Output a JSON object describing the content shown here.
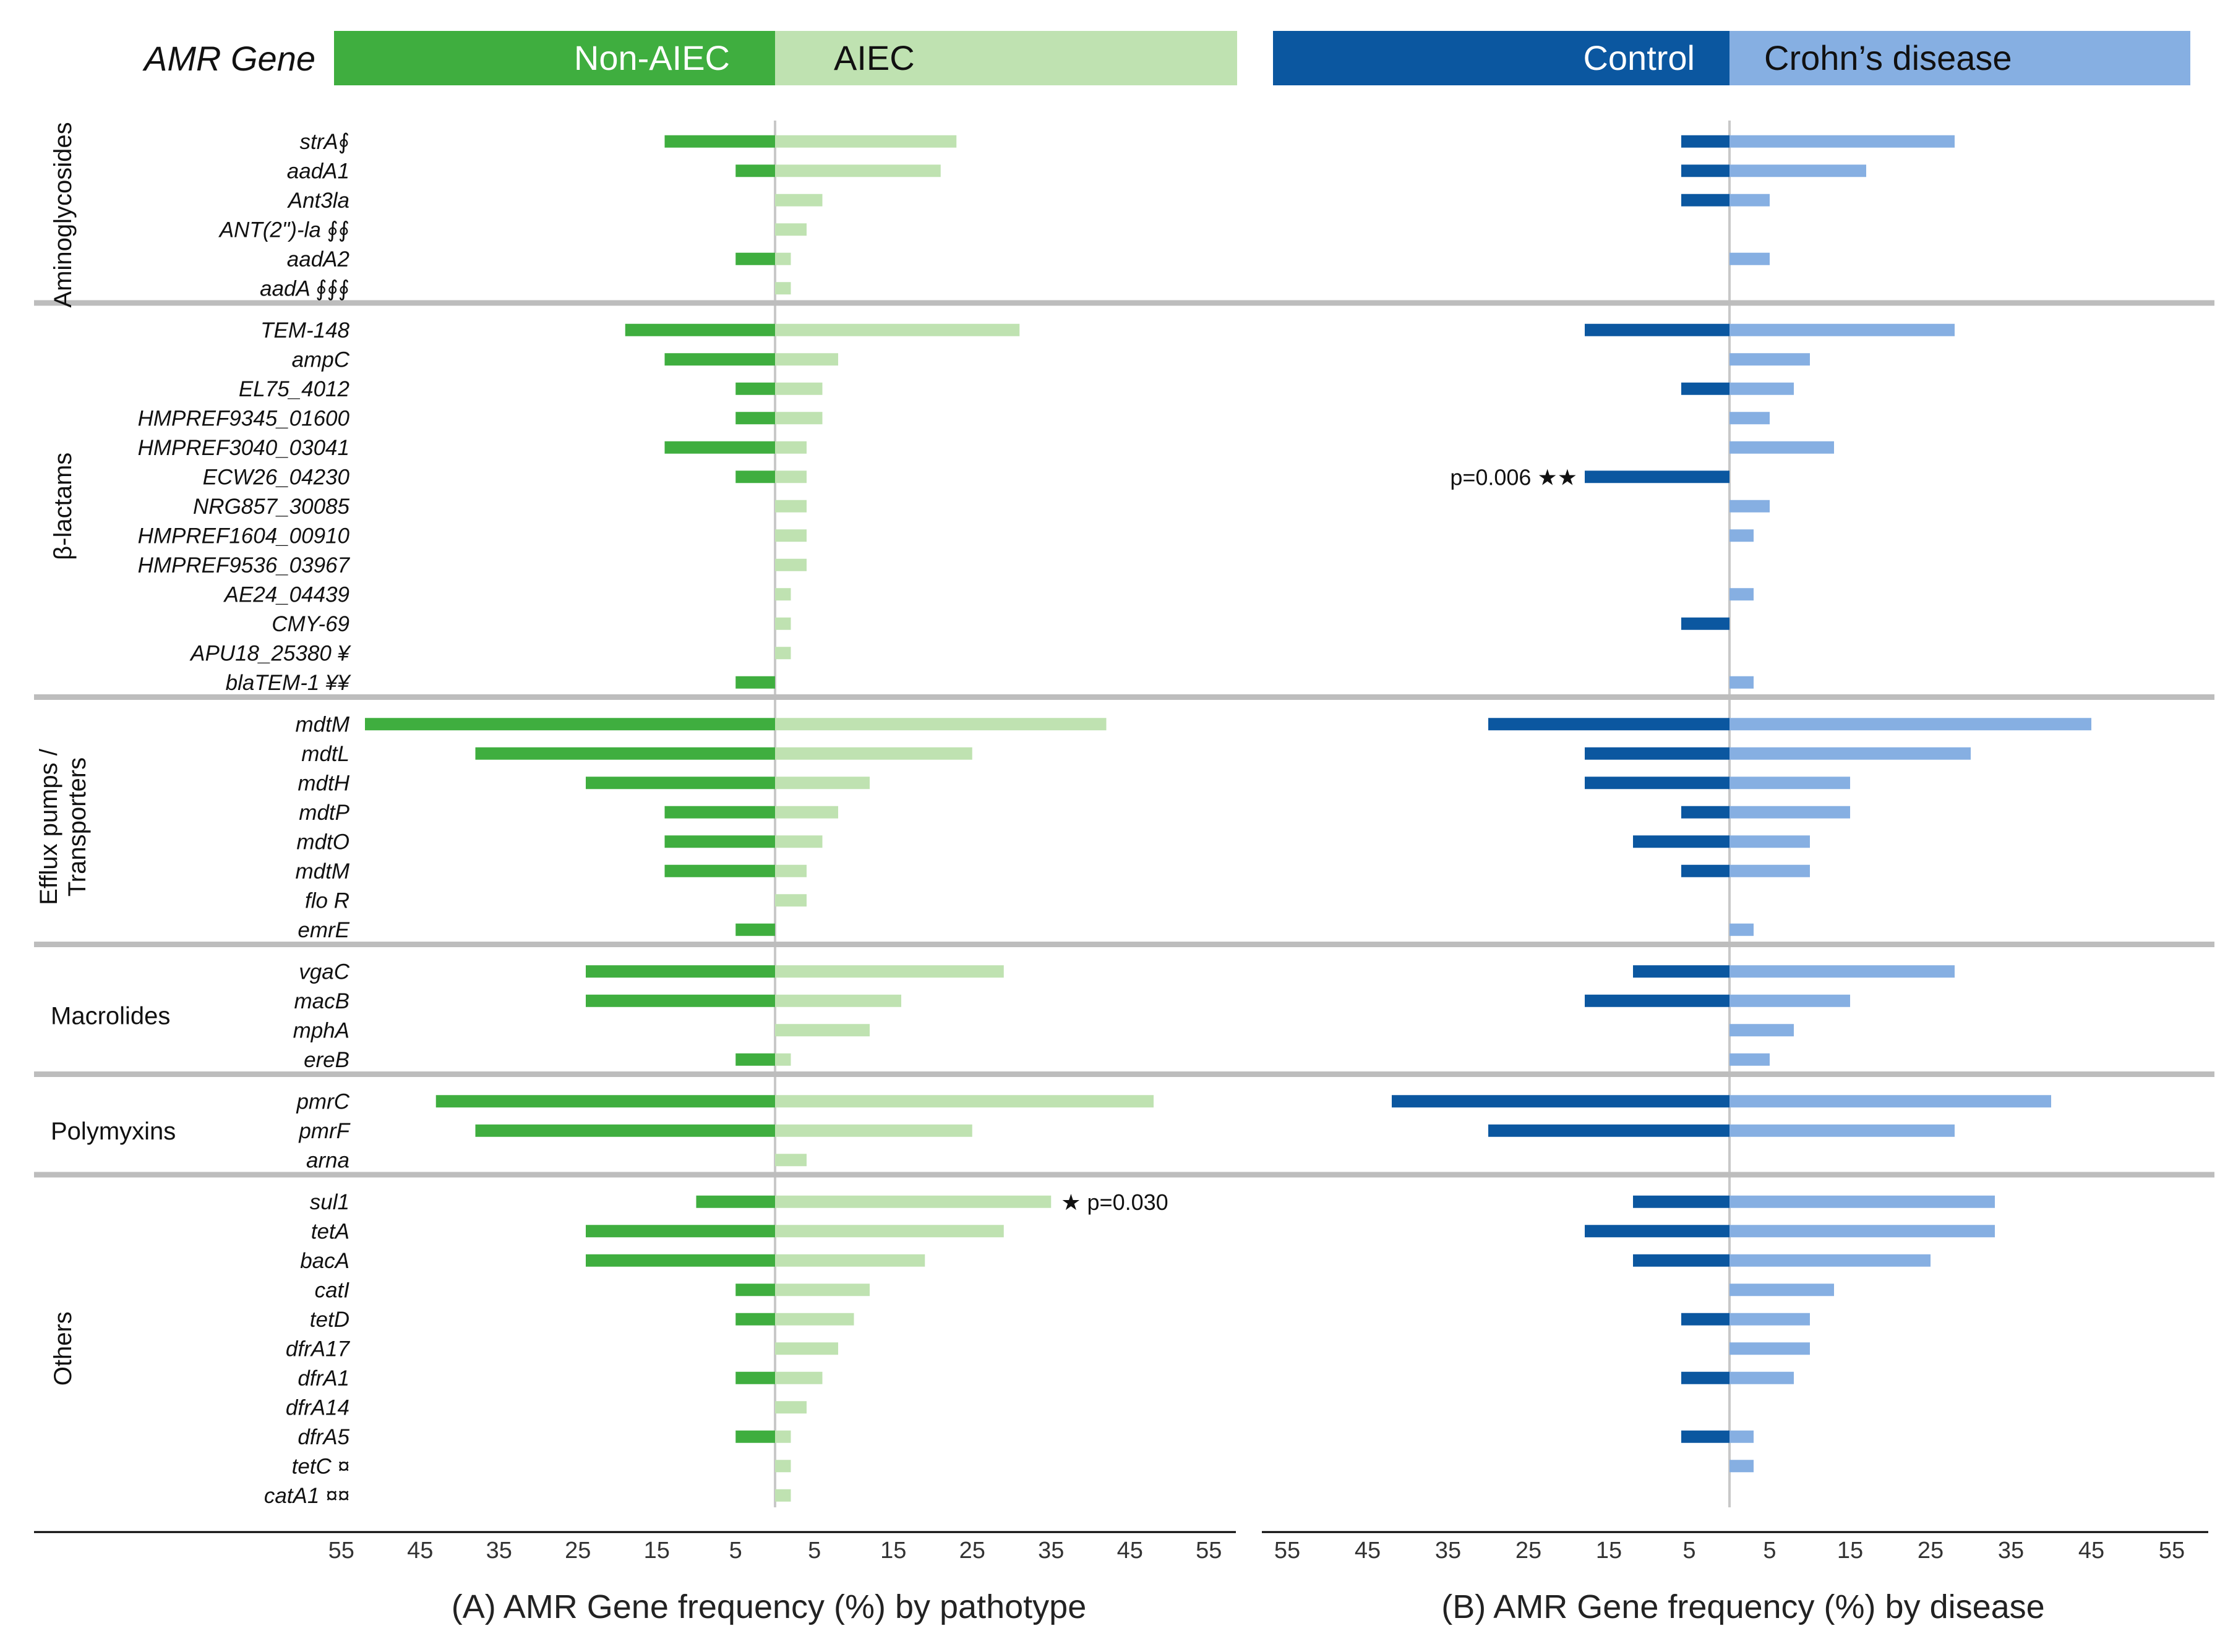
{
  "header": {
    "row_label": "AMR Gene",
    "panel_a": {
      "left_label": "Non-AIEC",
      "right_label": "AIEC"
    },
    "panel_b": {
      "left_label": "Control",
      "right_label": "Crohn’s disease"
    }
  },
  "colors": {
    "non_aiec": "#3fae3f",
    "aiec": "#bfe2b1",
    "control": "#0b57a0",
    "crohns": "#86afe2",
    "separator": "#bdbdbd",
    "axis": "#000000",
    "center_line": "#c8c8c8"
  },
  "chart_data": [
    {
      "type": "bar",
      "orientation": "horizontal",
      "layout": "butterfly",
      "title": "",
      "xlabel": "(A) AMR Gene frequency (%) by pathotype",
      "xlim": [
        -55,
        55
      ],
      "xticks": [
        "55",
        "45",
        "35",
        "25",
        "15",
        "5",
        "5",
        "15",
        "25",
        "35",
        "45",
        "55"
      ],
      "series_names": [
        "Non-AIEC",
        "AIEC"
      ],
      "annotations": [
        {
          "gene": "sul1",
          "text": "★ p=0.030",
          "side": "right"
        }
      ]
    },
    {
      "type": "bar",
      "orientation": "horizontal",
      "layout": "butterfly",
      "title": "",
      "xlabel": "(B) AMR Gene frequency (%) by disease",
      "xlim": [
        -55,
        55
      ],
      "xticks": [
        "55",
        "45",
        "35",
        "25",
        "15",
        "5",
        "5",
        "15",
        "25",
        "35",
        "45",
        "55"
      ],
      "series_names": [
        "Control",
        "Crohn’s disease"
      ],
      "annotations": [
        {
          "gene": "ECW26_04230",
          "text": "p=0.006 ★★",
          "side": "left"
        }
      ]
    }
  ],
  "categories": [
    {
      "name": "Aminoglycosides",
      "lines": [
        "Aminoglycosides"
      ],
      "vertical": true,
      "genes": [
        {
          "label": "strA∮",
          "a": [
            14,
            23
          ],
          "b": [
            6,
            28
          ]
        },
        {
          "label": "aadA1",
          "a": [
            5,
            21
          ],
          "b": [
            6,
            17
          ]
        },
        {
          "label": "Ant3la",
          "a": [
            0,
            6
          ],
          "b": [
            6,
            5
          ]
        },
        {
          "label": "ANT(2\")-la ∮∮",
          "a": [
            0,
            4
          ],
          "b": [
            0,
            0
          ]
        },
        {
          "label": "aadA2",
          "a": [
            5,
            2
          ],
          "b": [
            0,
            5
          ]
        },
        {
          "label": "aadA ∮∮∮",
          "a": [
            0,
            2
          ],
          "b": [
            0,
            0
          ]
        }
      ]
    },
    {
      "name": "β-lactams",
      "lines": [
        "β-lactams"
      ],
      "vertical": true,
      "genes": [
        {
          "label": "TEM-148",
          "a": [
            19,
            31
          ],
          "b": [
            18,
            28
          ]
        },
        {
          "label": "ampC",
          "a": [
            14,
            8
          ],
          "b": [
            0,
            10
          ]
        },
        {
          "label": "EL75_4012",
          "a": [
            5,
            6
          ],
          "b": [
            6,
            8
          ]
        },
        {
          "label": "HMPREF9345_01600",
          "a": [
            5,
            6
          ],
          "b": [
            0,
            5
          ]
        },
        {
          "label": "HMPREF3040_03041",
          "a": [
            14,
            4
          ],
          "b": [
            0,
            13
          ]
        },
        {
          "label": "ECW26_04230",
          "a": [
            5,
            4
          ],
          "b": [
            18,
            0
          ]
        },
        {
          "label": "NRG857_30085",
          "a": [
            0,
            4
          ],
          "b": [
            0,
            5
          ]
        },
        {
          "label": "HMPREF1604_00910",
          "a": [
            0,
            4
          ],
          "b": [
            0,
            3
          ]
        },
        {
          "label": "HMPREF9536_03967",
          "a": [
            0,
            4
          ],
          "b": [
            0,
            0
          ]
        },
        {
          "label": "AE24_04439",
          "a": [
            0,
            2
          ],
          "b": [
            0,
            3
          ]
        },
        {
          "label": "CMY-69",
          "a": [
            0,
            2
          ],
          "b": [
            6,
            0
          ]
        },
        {
          "label": "APU18_25380 ¥",
          "a": [
            0,
            2
          ],
          "b": [
            0,
            0
          ]
        },
        {
          "label": "blaTEM-1 ¥¥",
          "a": [
            5,
            0
          ],
          "b": [
            0,
            3
          ]
        }
      ]
    },
    {
      "name": "Efflux pumps / Transporters",
      "lines": [
        "Efflux pumps /",
        "Transporters"
      ],
      "vertical": true,
      "genes": [
        {
          "label": "mdtM",
          "a": [
            52,
            42
          ],
          "b": [
            30,
            45
          ]
        },
        {
          "label": "mdtL",
          "a": [
            38,
            25
          ],
          "b": [
            18,
            30
          ]
        },
        {
          "label": "mdtH",
          "a": [
            24,
            12
          ],
          "b": [
            18,
            15
          ]
        },
        {
          "label": "mdtP",
          "a": [
            14,
            8
          ],
          "b": [
            6,
            15
          ]
        },
        {
          "label": "mdtO",
          "a": [
            14,
            6
          ],
          "b": [
            12,
            10
          ]
        },
        {
          "label": "mdtM",
          "a": [
            14,
            4
          ],
          "b": [
            6,
            10
          ]
        },
        {
          "label": "flo R",
          "a": [
            0,
            4
          ],
          "b": [
            0,
            0
          ]
        },
        {
          "label": "emrE",
          "a": [
            5,
            0
          ],
          "b": [
            0,
            3
          ]
        }
      ]
    },
    {
      "name": "Macrolides",
      "lines": [
        "Macrolides"
      ],
      "vertical": false,
      "genes": [
        {
          "label": "vgaC",
          "a": [
            24,
            29
          ],
          "b": [
            12,
            28
          ]
        },
        {
          "label": "macB",
          "a": [
            24,
            16
          ],
          "b": [
            18,
            15
          ]
        },
        {
          "label": "mphA",
          "a": [
            0,
            12
          ],
          "b": [
            0,
            8
          ]
        },
        {
          "label": "ereB",
          "a": [
            5,
            2
          ],
          "b": [
            0,
            5
          ]
        }
      ]
    },
    {
      "name": "Polymyxins",
      "lines": [
        "Polymyxins"
      ],
      "vertical": false,
      "genes": [
        {
          "label": "pmrC",
          "a": [
            43,
            48
          ],
          "b": [
            42,
            40
          ]
        },
        {
          "label": "pmrF",
          "a": [
            38,
            25
          ],
          "b": [
            30,
            28
          ]
        },
        {
          "label": "arna",
          "a": [
            0,
            4
          ],
          "b": [
            0,
            0
          ]
        }
      ]
    },
    {
      "name": "Others",
      "lines": [
        "Others"
      ],
      "vertical": true,
      "genes": [
        {
          "label": "sul1",
          "a": [
            10,
            35
          ],
          "b": [
            12,
            33
          ]
        },
        {
          "label": "tetA",
          "a": [
            24,
            29
          ],
          "b": [
            18,
            33
          ]
        },
        {
          "label": "bacA",
          "a": [
            24,
            19
          ],
          "b": [
            12,
            25
          ]
        },
        {
          "label": "catI",
          "a": [
            5,
            12
          ],
          "b": [
            0,
            13
          ]
        },
        {
          "label": "tetD",
          "a": [
            5,
            10
          ],
          "b": [
            6,
            10
          ]
        },
        {
          "label": "dfrA17",
          "a": [
            0,
            8
          ],
          "b": [
            0,
            10
          ]
        },
        {
          "label": "dfrA1",
          "a": [
            5,
            6
          ],
          "b": [
            6,
            8
          ]
        },
        {
          "label": "dfrA14",
          "a": [
            0,
            4
          ],
          "b": [
            0,
            0
          ]
        },
        {
          "label": "dfrA5",
          "a": [
            5,
            2
          ],
          "b": [
            6,
            3
          ]
        },
        {
          "label": "tetC ¤",
          "a": [
            0,
            2
          ],
          "b": [
            0,
            3
          ]
        },
        {
          "label": "catA1 ¤¤",
          "a": [
            0,
            2
          ],
          "b": [
            0,
            0
          ]
        }
      ]
    }
  ]
}
